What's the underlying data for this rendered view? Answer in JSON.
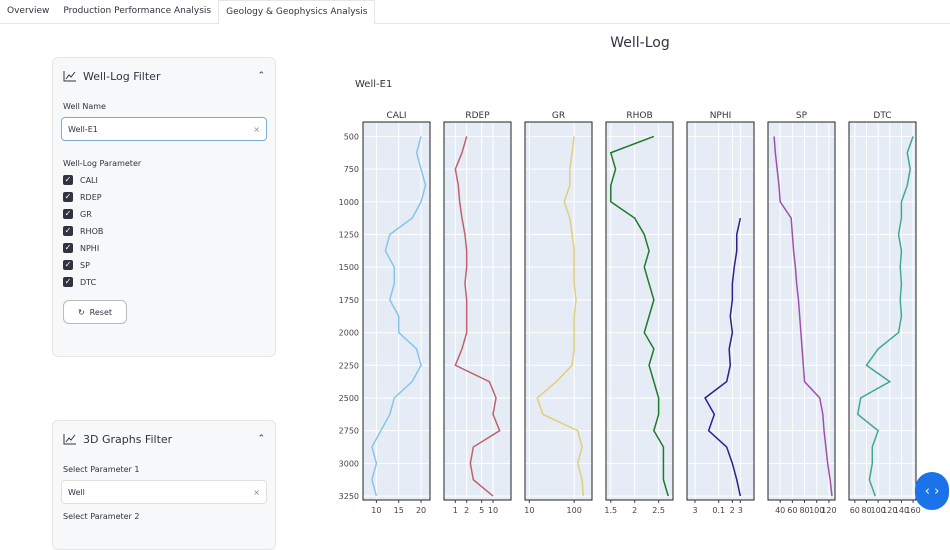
{
  "tabs": [
    "Overview",
    "Production Performance Analysis",
    "Geology & Geophysics Analysis"
  ],
  "well_log_filter": {
    "title": "Well-Log Filter",
    "well_name_label": "Well Name",
    "well_name_value": "Well-E1",
    "parameter_label": "Well-Log Parameter",
    "parameters": [
      "CALI",
      "RDEP",
      "GR",
      "RHOB",
      "NPHI",
      "SP",
      "DTC"
    ],
    "reset": "Reset"
  },
  "graphs_filter": {
    "title": "3D Graphs Filter",
    "param1_label": "Select Parameter 1",
    "param1_value": "Well",
    "param2_label": "Select Parameter 2"
  },
  "chart_data": {
    "type": "well-log",
    "title": "Well-Log",
    "subtitle": "Well-E1",
    "ylim": [
      390,
      3280
    ],
    "y_inverted": true,
    "yticks": [
      500,
      750,
      1000,
      1250,
      1500,
      1750,
      2000,
      2250,
      2500,
      2750,
      3000,
      3250
    ],
    "grid": true,
    "depth": [
      500,
      625,
      750,
      875,
      1000,
      1125,
      1250,
      1375,
      1500,
      1625,
      1750,
      1875,
      2000,
      2125,
      2250,
      2375,
      2500,
      2625,
      2750,
      2875,
      3000,
      3125,
      3250
    ],
    "series": [
      {
        "name": "CALI",
        "color": "#87c5e8",
        "log": false,
        "xlim": [
          7,
          22
        ],
        "xticks": [
          10,
          15,
          20
        ],
        "values": [
          20,
          19,
          20,
          21,
          20,
          18,
          13,
          12,
          14,
          14,
          13,
          15,
          15,
          19,
          20,
          18,
          14,
          13,
          11,
          9,
          10,
          9,
          10
        ]
      },
      {
        "name": "RDEP",
        "color": "#c0616b",
        "log": true,
        "xlim": [
          0.5,
          30
        ],
        "xticks": [
          1,
          2,
          5,
          10
        ],
        "values": [
          2,
          1.5,
          1,
          1.2,
          1.3,
          1.5,
          1.8,
          2,
          2,
          1.8,
          2,
          2,
          2,
          1.5,
          1,
          8,
          12,
          10,
          15,
          3,
          2.5,
          3,
          10
        ]
      },
      {
        "name": "GR",
        "color": "#e0cf7a",
        "log": true,
        "xlim": [
          8,
          250
        ],
        "xticks": [
          10,
          100
        ],
        "values": [
          100,
          90,
          80,
          80,
          60,
          80,
          90,
          100,
          100,
          100,
          110,
          100,
          100,
          100,
          90,
          40,
          15,
          20,
          120,
          150,
          120,
          150,
          160
        ]
      },
      {
        "name": "RHOB",
        "color": "#1f7a2a",
        "log": false,
        "xlim": [
          1.4,
          2.8
        ],
        "xticks": [
          1.5,
          2,
          2.5
        ],
        "values": [
          2.4,
          1.5,
          1.6,
          1.5,
          1.5,
          2.0,
          2.2,
          2.3,
          2.2,
          2.3,
          2.4,
          2.3,
          2.2,
          2.4,
          2.3,
          2.4,
          2.5,
          2.5,
          2.4,
          2.6,
          2.6,
          2.6,
          2.7
        ]
      },
      {
        "name": "NPHI",
        "color": "#2e1f8a",
        "log": true,
        "xlim": [
          0.02,
          0.6
        ],
        "xticks": [
          {
            "value": 0.03,
            "label": "3"
          },
          0.1,
          {
            "value": 0.2,
            "label": "2"
          },
          {
            "value": 0.3,
            "label": "3"
          }
        ],
        "values": [
          null,
          null,
          null,
          null,
          null,
          0.3,
          0.25,
          0.25,
          0.22,
          0.2,
          0.2,
          0.18,
          0.2,
          0.17,
          0.18,
          0.15,
          0.05,
          0.08,
          0.06,
          0.15,
          0.2,
          0.25,
          0.3
        ]
      },
      {
        "name": "SP",
        "color": "#a24fa8",
        "log": false,
        "xlim": [
          20,
          130
        ],
        "xticks": [
          40,
          60,
          80,
          100,
          120
        ],
        "values": [
          30,
          32,
          35,
          38,
          40,
          58,
          60,
          62,
          65,
          67,
          70,
          72,
          74,
          76,
          78,
          80,
          105,
          110,
          112,
          115,
          118,
          122,
          125
        ]
      },
      {
        "name": "DTC",
        "color": "#3fa98e",
        "log": false,
        "xlim": [
          50,
          165
        ],
        "xticks": [
          60,
          80,
          100,
          120,
          140,
          160
        ],
        "values": [
          160,
          150,
          155,
          150,
          140,
          140,
          135,
          140,
          138,
          140,
          138,
          140,
          135,
          100,
          80,
          120,
          70,
          65,
          100,
          90,
          90,
          85,
          95
        ]
      }
    ]
  }
}
